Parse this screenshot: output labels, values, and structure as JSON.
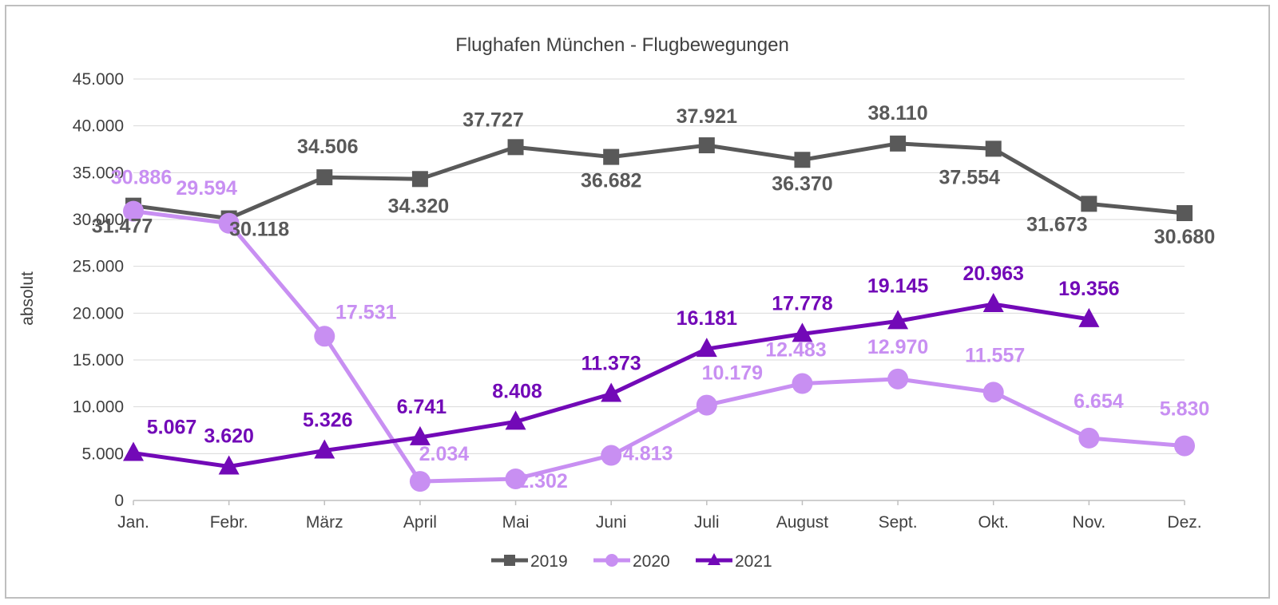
{
  "chart_data": {
    "type": "line",
    "title": "Flughafen München - Flugbewegungen",
    "xlabel": "",
    "ylabel": "absolut",
    "ylim": [
      0,
      45000
    ],
    "yticks": [
      {
        "value": 0,
        "label": "0"
      },
      {
        "value": 5000,
        "label": "5.000"
      },
      {
        "value": 10000,
        "label": "10.000"
      },
      {
        "value": 15000,
        "label": "15.000"
      },
      {
        "value": 20000,
        "label": "20.000"
      },
      {
        "value": 25000,
        "label": "25.000"
      },
      {
        "value": 30000,
        "label": "30.000"
      },
      {
        "value": 35000,
        "label": "35.000"
      },
      {
        "value": 40000,
        "label": "40.000"
      },
      {
        "value": 45000,
        "label": "45.000"
      }
    ],
    "grid": true,
    "legend_position": "bottom",
    "categories": [
      "Jan.",
      "Febr.",
      "März",
      "April",
      "Mai",
      "Juni",
      "Juli",
      "August",
      "Sept.",
      "Okt.",
      "Nov.",
      "Dez."
    ],
    "series": [
      {
        "name": "2019",
        "color": "#595959",
        "marker": "square",
        "values": [
          31477,
          30118,
          34506,
          34320,
          37727,
          36682,
          37921,
          36370,
          38110,
          37554,
          31673,
          30680
        ],
        "labels": [
          "31.477",
          "30.118",
          "34.506",
          "34.320",
          "37.727",
          "36.682",
          "37.921",
          "36.370",
          "38.110",
          "37.554",
          "31.673",
          "30.680"
        ]
      },
      {
        "name": "2020",
        "color": "#c88ff2",
        "marker": "circle",
        "values": [
          30886,
          29594,
          17531,
          2034,
          2302,
          4813,
          10179,
          12483,
          12970,
          11557,
          6654,
          5830
        ],
        "labels": [
          "30.886",
          "29.594",
          "17.531",
          "2.034",
          "2.302",
          "4.813",
          "10.179",
          "12.483",
          "12.970",
          "11.557",
          "6.654",
          "5.830"
        ]
      },
      {
        "name": "2021",
        "color": "#7209b7",
        "marker": "triangle",
        "values": [
          5067,
          3620,
          5326,
          6741,
          8408,
          11373,
          16181,
          17778,
          19145,
          20963,
          19356,
          null
        ],
        "labels": [
          "5.067",
          "3.620",
          "5.326",
          "6.741",
          "8.408",
          "11.373",
          "16.181",
          "17.778",
          "19.145",
          "20.963",
          "19.356",
          null
        ]
      }
    ]
  }
}
